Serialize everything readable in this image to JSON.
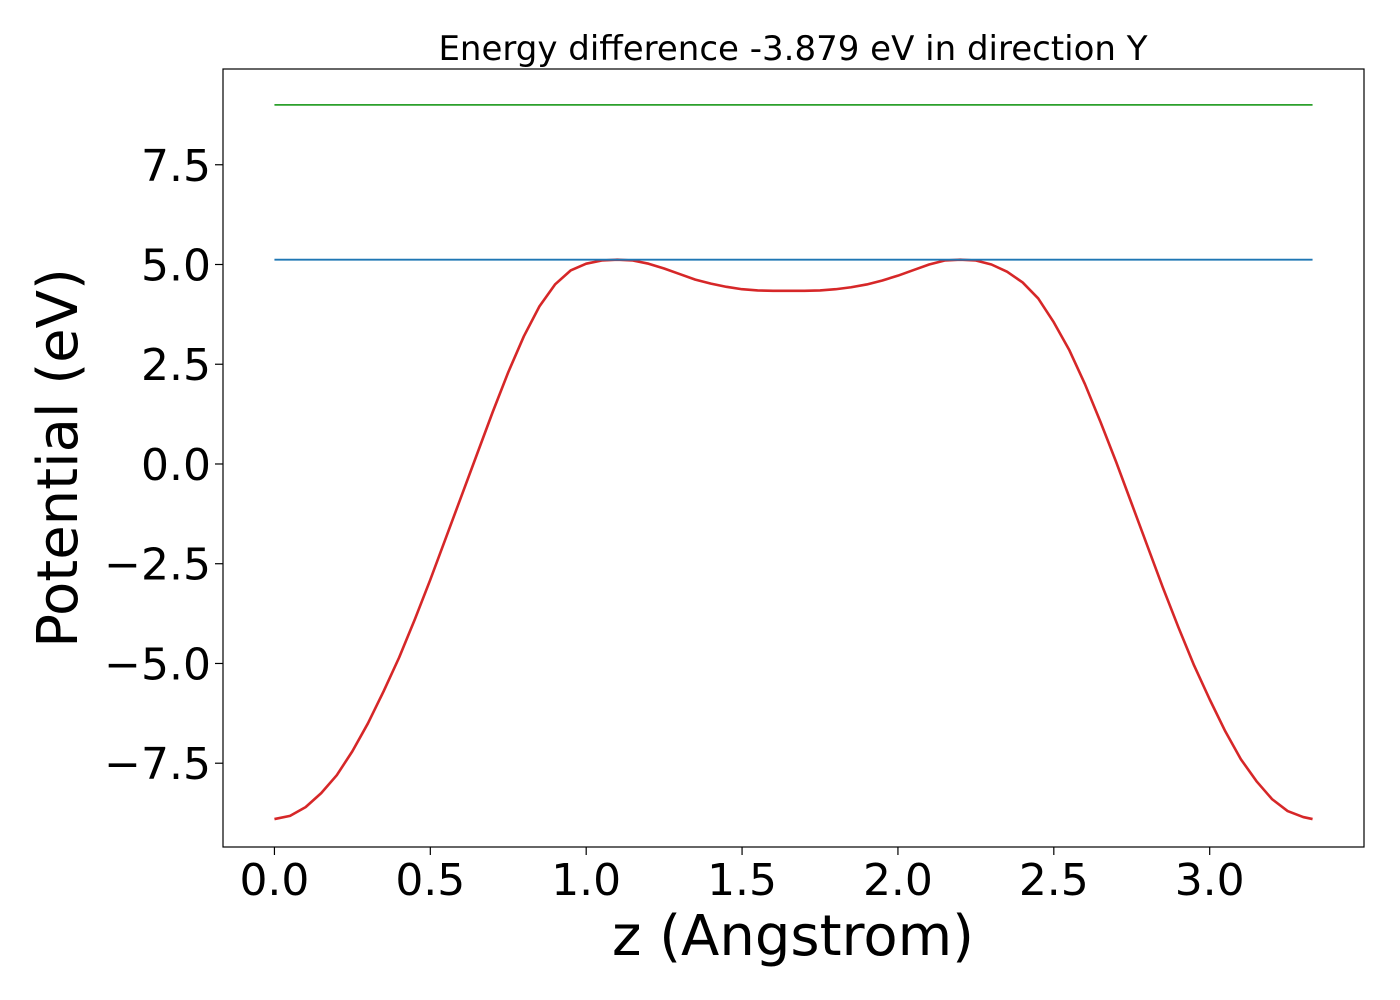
{
  "chart_data": {
    "type": "line",
    "title": "Energy difference -3.879 eV in direction Y",
    "xlabel": "z (Angstrom)",
    "ylabel": "Potential (eV)",
    "xlim": [
      -0.165,
      3.495
    ],
    "ylim": [
      -9.6,
      9.9
    ],
    "xticks": [
      0.0,
      0.5,
      1.0,
      1.5,
      2.0,
      2.5,
      3.0
    ],
    "xtick_labels": [
      "0.0",
      "0.5",
      "1.0",
      "1.5",
      "2.0",
      "2.5",
      "3.0"
    ],
    "yticks": [
      -7.5,
      -5.0,
      -2.5,
      0.0,
      2.5,
      5.0,
      7.5
    ],
    "ytick_labels": [
      "−7.5",
      "−5.0",
      "−2.5",
      "0.0",
      "2.5",
      "5.0",
      "7.5"
    ],
    "grid": false,
    "legend": "none",
    "series": [
      {
        "color": "#d62728",
        "x": [
          0.0,
          0.05,
          0.1,
          0.15,
          0.2,
          0.25,
          0.3,
          0.35,
          0.4,
          0.45,
          0.5,
          0.55,
          0.6,
          0.65,
          0.7,
          0.75,
          0.8,
          0.85,
          0.9,
          0.95,
          1.0,
          1.05,
          1.1,
          1.15,
          1.2,
          1.25,
          1.3,
          1.35,
          1.4,
          1.45,
          1.5,
          1.55,
          1.6,
          1.65,
          1.7,
          1.75,
          1.8,
          1.85,
          1.9,
          1.95,
          2.0,
          2.05,
          2.1,
          2.15,
          2.2,
          2.25,
          2.3,
          2.35,
          2.4,
          2.45,
          2.5,
          2.55,
          2.6,
          2.65,
          2.7,
          2.75,
          2.8,
          2.85,
          2.9,
          2.95,
          3.0,
          3.05,
          3.1,
          3.15,
          3.2,
          3.25,
          3.3,
          3.33
        ],
        "y": [
          -8.9,
          -8.82,
          -8.6,
          -8.25,
          -7.8,
          -7.2,
          -6.5,
          -5.7,
          -4.85,
          -3.9,
          -2.9,
          -1.85,
          -0.8,
          0.25,
          1.3,
          2.3,
          3.2,
          3.95,
          4.5,
          4.85,
          5.02,
          5.1,
          5.12,
          5.1,
          5.02,
          4.9,
          4.76,
          4.62,
          4.52,
          4.44,
          4.38,
          4.35,
          4.34,
          4.34,
          4.34,
          4.35,
          4.38,
          4.43,
          4.5,
          4.6,
          4.72,
          4.86,
          5.0,
          5.1,
          5.12,
          5.1,
          5.0,
          4.82,
          4.55,
          4.15,
          3.55,
          2.85,
          2.0,
          1.05,
          0.05,
          -1.0,
          -2.05,
          -3.1,
          -4.1,
          -5.05,
          -5.9,
          -6.7,
          -7.4,
          -7.95,
          -8.4,
          -8.7,
          -8.85,
          -8.9
        ]
      },
      {
        "color": "#1f77b4",
        "x": [
          0.0,
          3.33
        ],
        "y": [
          5.12,
          5.12
        ]
      },
      {
        "color": "#2ca02c",
        "x": [
          0.0,
          3.33
        ],
        "y": [
          9.0,
          9.0
        ]
      }
    ]
  }
}
